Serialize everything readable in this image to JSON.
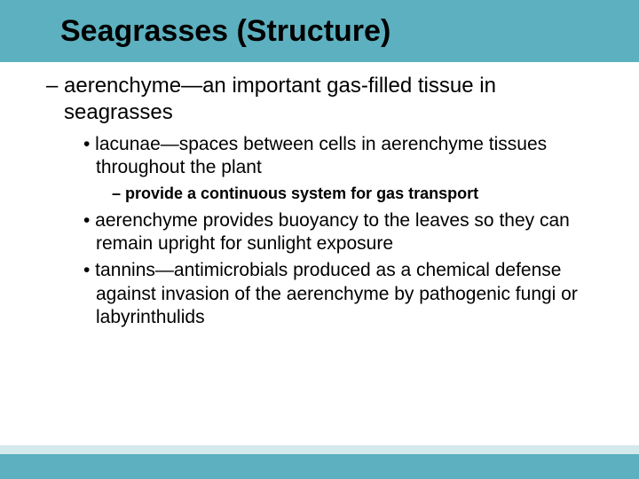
{
  "colors": {
    "header_bg": "#5cb0bf",
    "header_text": "#000000",
    "body_text": "#000000",
    "footer_bar": "#5cb0bf",
    "footer_light": "#d4e9ec",
    "page_bg": "#ffffff"
  },
  "title": "Seagrasses (Structure)",
  "bullets": {
    "b1": "– aerenchyme—an important gas-filled tissue in seagrasses",
    "b2": "• lacunae—spaces between cells in aerenchyme tissues throughout the plant",
    "b3": "– provide a continuous system for gas transport",
    "b4": "• aerenchyme provides buoyancy to the leaves so they can remain upright for sunlight exposure",
    "b5": "• tannins—antimicrobials produced as a chemical defense against invasion of the aerenchyme by pathogenic fungi or labyrinthulids"
  },
  "typography": {
    "title_fontsize": 34,
    "level1_fontsize": 24,
    "level2_fontsize": 21,
    "level3_fontsize": 18
  }
}
